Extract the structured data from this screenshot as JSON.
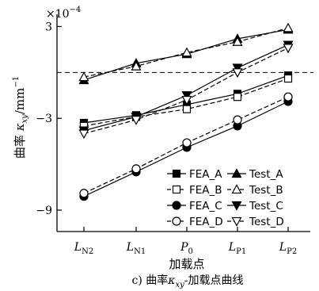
{
  "chart_data": {
    "type": "line",
    "scale_label": "×10",
    "scale_exponent": "−4",
    "categories": [
      {
        "main": "L",
        "sub": "N2"
      },
      {
        "main": "L",
        "sub": "N1"
      },
      {
        "main": "P",
        "sub": "0"
      },
      {
        "main": "L",
        "sub": "P1"
      },
      {
        "main": "L",
        "sub": "P2"
      }
    ],
    "y_ticks": [
      "3",
      "−3",
      "−9"
    ],
    "y_tick_values": [
      3,
      -3,
      -9
    ],
    "ylim": [
      -10.4,
      3.8
    ],
    "reference_line_y": 0,
    "xlabel": "加载点",
    "ylabel": {
      "prefix": "曲率",
      "symbol": "κ",
      "sub": "xy",
      "unit": "/mm",
      "unit_exp": "−1"
    },
    "caption": {
      "num": "c)",
      "prefix": "曲率",
      "symbol": "κ",
      "sub": "xy",
      "suffix": "-加载点曲线"
    },
    "series": [
      {
        "name": "FEA_A",
        "marker": "square-filled",
        "dash": "solid",
        "values": [
          -3.3,
          -2.8,
          -2.1,
          -1.4,
          -0.2
        ]
      },
      {
        "name": "FEA_B",
        "marker": "square-open",
        "dash": "dashed",
        "values": [
          -3.5,
          -2.9,
          -2.4,
          -1.6,
          -0.4
        ]
      },
      {
        "name": "FEA_C",
        "marker": "circle-filled",
        "dash": "solid",
        "values": [
          -8.1,
          -6.5,
          -4.9,
          -3.5,
          -1.9
        ]
      },
      {
        "name": "FEA_D",
        "marker": "circle-open",
        "dash": "dashed",
        "values": [
          -7.9,
          -6.3,
          -4.6,
          -3.1,
          -1.6
        ]
      },
      {
        "name": "Test_A",
        "marker": "triangle-filled",
        "dash": "solid",
        "values": [
          -0.5,
          0.6,
          1.2,
          2.2,
          2.8
        ]
      },
      {
        "name": "Test_B",
        "marker": "triangle-open",
        "dash": "dashed",
        "values": [
          -0.3,
          0.4,
          1.3,
          2.0,
          2.9
        ]
      },
      {
        "name": "Test_C",
        "marker": "tri-down-filled",
        "dash": "solid",
        "values": [
          -3.8,
          -2.9,
          -1.5,
          0.3,
          1.8
        ]
      },
      {
        "name": "Test_D",
        "marker": "tri-down-open",
        "dash": "dashed",
        "values": [
          -4.0,
          -3.1,
          -1.8,
          0.0,
          1.6
        ]
      }
    ],
    "legend_placement": "bottom-right",
    "grid": false
  }
}
